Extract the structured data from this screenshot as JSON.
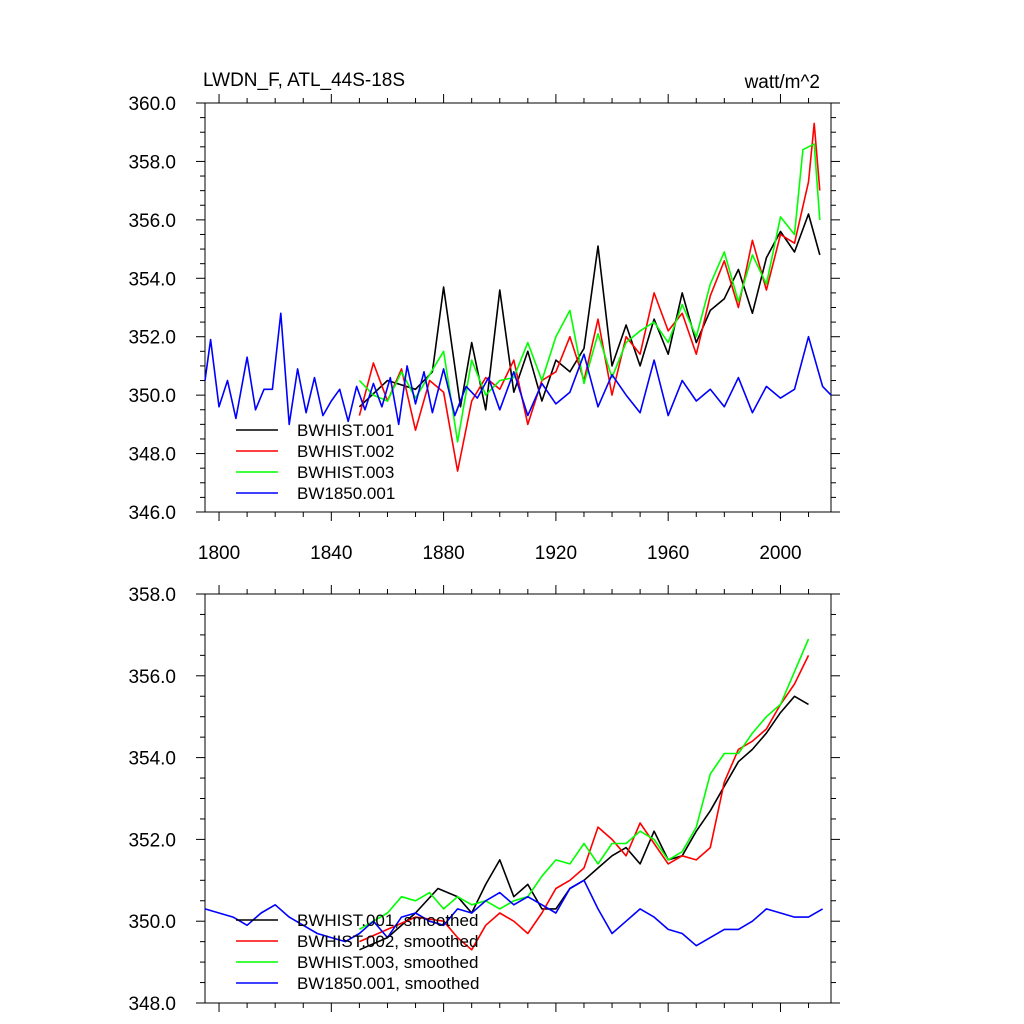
{
  "chart_data": [
    {
      "type": "line",
      "title": "LWDN_F, ATL_44S-18S",
      "units": "watt/m^2",
      "xlim": [
        1795,
        2018
      ],
      "ylim": [
        346,
        360
      ],
      "xticks": [
        1800,
        1840,
        1880,
        1920,
        1960,
        2000
      ],
      "yticks": [
        346.0,
        348.0,
        350.0,
        352.0,
        354.0,
        356.0,
        358.0,
        360.0
      ],
      "ytick_labels": [
        "346.0",
        "348.0",
        "350.0",
        "352.0",
        "354.0",
        "356.0",
        "358.0",
        "360.0"
      ],
      "grid": false,
      "legend_position": "bottom-left",
      "series": [
        {
          "name": "BWHIST.001",
          "color": "#000000",
          "x": [
            1850,
            1860,
            1870,
            1876,
            1880,
            1886,
            1890,
            1895,
            1900,
            1905,
            1910,
            1915,
            1920,
            1925,
            1930,
            1935,
            1940,
            1945,
            1950,
            1955,
            1960,
            1965,
            1970,
            1975,
            1980,
            1985,
            1990,
            1995,
            2000,
            2005,
            2010,
            2014
          ],
          "y": [
            349.6,
            350.5,
            350.2,
            350.8,
            353.7,
            349.6,
            351.8,
            349.5,
            353.6,
            350.1,
            351.5,
            349.8,
            351.2,
            350.8,
            351.6,
            355.1,
            351.0,
            352.4,
            351.0,
            352.6,
            351.4,
            353.5,
            351.8,
            352.9,
            353.3,
            354.3,
            352.8,
            354.7,
            355.6,
            354.9,
            356.2,
            354.8
          ]
        },
        {
          "name": "BWHIST.002",
          "color": "#ff0000",
          "x": [
            1850,
            1855,
            1860,
            1865,
            1870,
            1875,
            1880,
            1885,
            1890,
            1895,
            1900,
            1905,
            1910,
            1915,
            1920,
            1925,
            1930,
            1935,
            1940,
            1945,
            1950,
            1955,
            1960,
            1965,
            1970,
            1975,
            1980,
            1985,
            1990,
            1995,
            2000,
            2005,
            2010,
            2012,
            2014
          ],
          "y": [
            349.3,
            351.1,
            349.8,
            350.9,
            348.8,
            350.5,
            350.1,
            347.4,
            349.8,
            350.6,
            350.2,
            351.2,
            349.0,
            350.5,
            350.8,
            352.0,
            350.5,
            352.6,
            350.0,
            352.0,
            351.4,
            353.5,
            352.2,
            352.8,
            351.4,
            353.4,
            354.6,
            353.0,
            355.3,
            353.6,
            355.5,
            355.2,
            357.3,
            359.3,
            357.0
          ]
        },
        {
          "name": "BWHIST.003",
          "color": "#00ff00",
          "x": [
            1850,
            1855,
            1860,
            1865,
            1870,
            1875,
            1880,
            1885,
            1890,
            1895,
            1900,
            1905,
            1910,
            1915,
            1920,
            1925,
            1930,
            1935,
            1940,
            1945,
            1950,
            1955,
            1960,
            1965,
            1970,
            1975,
            1980,
            1985,
            1990,
            1995,
            2000,
            2005,
            2008,
            2012,
            2014
          ],
          "y": [
            350.5,
            350.0,
            349.8,
            350.8,
            349.9,
            350.7,
            351.5,
            348.4,
            351.2,
            350.0,
            350.5,
            350.6,
            351.8,
            350.5,
            352.0,
            352.9,
            350.4,
            352.1,
            350.6,
            351.8,
            352.2,
            352.5,
            351.8,
            353.1,
            352.0,
            353.8,
            354.9,
            353.2,
            354.8,
            353.8,
            356.1,
            355.5,
            358.4,
            358.6,
            356.0
          ]
        },
        {
          "name": "BW1850.001",
          "color": "#0000ff",
          "x": [
            1795,
            1797,
            1800,
            1803,
            1806,
            1810,
            1813,
            1816,
            1819,
            1822,
            1825,
            1828,
            1831,
            1834,
            1837,
            1840,
            1843,
            1846,
            1849,
            1852,
            1855,
            1858,
            1861,
            1864,
            1867,
            1870,
            1873,
            1876,
            1880,
            1884,
            1888,
            1892,
            1896,
            1900,
            1905,
            1910,
            1915,
            1920,
            1925,
            1930,
            1935,
            1940,
            1945,
            1950,
            1955,
            1960,
            1965,
            1970,
            1975,
            1980,
            1985,
            1990,
            1995,
            2000,
            2005,
            2010,
            2015,
            2018
          ],
          "y": [
            350.5,
            351.9,
            349.6,
            350.5,
            349.2,
            351.3,
            349.5,
            350.2,
            350.2,
            352.8,
            349.0,
            350.9,
            349.4,
            350.6,
            349.3,
            349.8,
            350.2,
            349.1,
            350.3,
            349.5,
            350.4,
            349.6,
            350.6,
            349.0,
            351.0,
            349.7,
            350.8,
            349.4,
            350.9,
            349.3,
            350.3,
            349.9,
            350.6,
            349.5,
            350.8,
            349.3,
            350.4,
            349.7,
            350.1,
            351.4,
            349.6,
            350.7,
            350.0,
            349.4,
            351.2,
            349.3,
            350.5,
            349.8,
            350.2,
            349.6,
            350.6,
            349.4,
            350.3,
            349.9,
            350.2,
            352.0,
            350.3,
            350.0
          ]
        }
      ]
    },
    {
      "type": "line",
      "xlim": [
        1795,
        2018
      ],
      "ylim": [
        348,
        358
      ],
      "yticks": [
        348.0,
        350.0,
        352.0,
        354.0,
        356.0,
        358.0
      ],
      "ytick_labels": [
        "348.0",
        "350.0",
        "352.0",
        "354.0",
        "356.0",
        "358.0"
      ],
      "grid": false,
      "legend_position": "bottom-left",
      "series": [
        {
          "name": "BWHIST.001, smoothed",
          "color": "#000000",
          "x": [
            1850,
            1860,
            1870,
            1878,
            1885,
            1890,
            1895,
            1900,
            1905,
            1910,
            1915,
            1920,
            1925,
            1930,
            1935,
            1940,
            1945,
            1950,
            1955,
            1960,
            1965,
            1970,
            1975,
            1980,
            1985,
            1990,
            1995,
            2000,
            2005,
            2010
          ],
          "y": [
            349.3,
            349.6,
            350.2,
            350.8,
            350.6,
            350.2,
            350.9,
            351.5,
            350.6,
            350.9,
            350.3,
            350.3,
            350.8,
            351.0,
            351.3,
            351.6,
            351.8,
            351.4,
            352.2,
            351.5,
            351.6,
            352.2,
            352.7,
            353.3,
            353.9,
            354.2,
            354.6,
            355.1,
            355.5,
            355.3
          ]
        },
        {
          "name": "BWHIST.002, smoothed",
          "color": "#ff0000",
          "x": [
            1850,
            1860,
            1870,
            1880,
            1885,
            1890,
            1895,
            1900,
            1905,
            1910,
            1915,
            1920,
            1925,
            1930,
            1935,
            1940,
            1945,
            1950,
            1955,
            1960,
            1965,
            1970,
            1975,
            1980,
            1985,
            1990,
            1995,
            2000,
            2005,
            2010
          ],
          "y": [
            349.5,
            349.8,
            350.1,
            350.0,
            349.6,
            349.3,
            349.9,
            350.2,
            350.0,
            349.7,
            350.2,
            350.8,
            351.0,
            351.3,
            352.3,
            352.0,
            351.6,
            352.4,
            351.9,
            351.4,
            351.6,
            351.5,
            351.8,
            353.4,
            354.2,
            354.4,
            354.7,
            355.3,
            355.8,
            356.5
          ]
        },
        {
          "name": "BWHIST.003, smoothed",
          "color": "#00ff00",
          "x": [
            1850,
            1860,
            1865,
            1870,
            1875,
            1880,
            1885,
            1890,
            1895,
            1900,
            1905,
            1910,
            1915,
            1920,
            1925,
            1930,
            1935,
            1940,
            1945,
            1950,
            1955,
            1960,
            1965,
            1970,
            1975,
            1980,
            1985,
            1990,
            1995,
            2000,
            2005,
            2010
          ],
          "y": [
            349.8,
            350.2,
            350.6,
            350.5,
            350.7,
            350.3,
            350.6,
            350.4,
            350.5,
            350.3,
            350.5,
            350.6,
            351.1,
            351.5,
            351.4,
            351.9,
            351.4,
            351.9,
            351.9,
            352.2,
            352.0,
            351.5,
            351.7,
            352.3,
            353.6,
            354.1,
            354.1,
            354.6,
            355.0,
            355.3,
            356.1,
            356.9
          ]
        },
        {
          "name": "BW1850.001, smoothed",
          "color": "#0000ff",
          "x": [
            1795,
            1800,
            1805,
            1810,
            1815,
            1820,
            1825,
            1830,
            1835,
            1840,
            1845,
            1850,
            1855,
            1860,
            1865,
            1870,
            1875,
            1880,
            1885,
            1890,
            1895,
            1900,
            1905,
            1910,
            1915,
            1920,
            1925,
            1930,
            1935,
            1940,
            1945,
            1950,
            1955,
            1960,
            1965,
            1970,
            1975,
            1980,
            1985,
            1990,
            1995,
            2000,
            2005,
            2010,
            2015
          ],
          "y": [
            350.3,
            350.2,
            350.1,
            349.9,
            350.2,
            350.4,
            350.1,
            349.9,
            349.7,
            349.6,
            349.5,
            349.7,
            350.0,
            349.6,
            350.1,
            350.2,
            350.0,
            349.9,
            350.3,
            350.2,
            350.5,
            350.7,
            350.4,
            350.6,
            350.4,
            350.2,
            350.8,
            351.0,
            350.3,
            349.7,
            350.0,
            350.3,
            350.1,
            349.8,
            349.7,
            349.4,
            349.6,
            349.8,
            349.8,
            350.0,
            350.3,
            350.2,
            350.1,
            350.1,
            350.3
          ]
        }
      ]
    }
  ]
}
